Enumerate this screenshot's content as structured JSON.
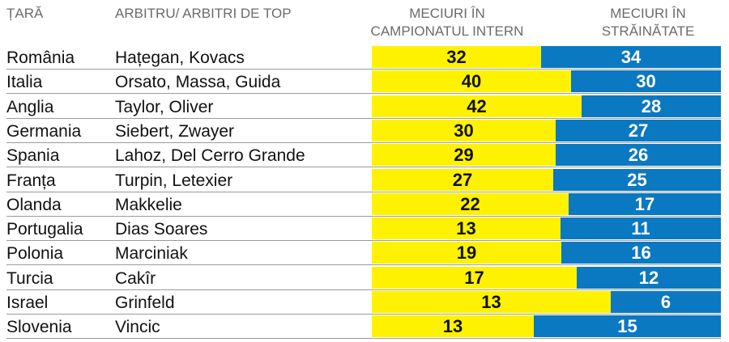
{
  "header": {
    "country": "ȚARĂ",
    "referees": "ARBITRU/ ARBITRI DE TOP",
    "domestic_line1": "MECIURI ÎN",
    "domestic_line2": "CAMPIONATUL INTERN",
    "abroad_line1": "MECIURI ÎN",
    "abroad_line2": "STRĂINĂTATE"
  },
  "colors": {
    "domestic": "#fff200",
    "abroad": "#0b78c2"
  },
  "chart_data": {
    "type": "bar",
    "stacked": true,
    "series": [
      {
        "name": "MECIURI ÎN CAMPIONATUL INTERN",
        "values": [
          32,
          40,
          42,
          30,
          29,
          27,
          22,
          13,
          19,
          17,
          13,
          13
        ]
      },
      {
        "name": "MECIURI ÎN STRĂINĂTATE",
        "values": [
          34,
          30,
          28,
          27,
          26,
          25,
          17,
          11,
          16,
          12,
          6,
          15
        ]
      }
    ],
    "rows": [
      {
        "country": "România",
        "referees": "Hațegan, Kovacs",
        "domestic": 32,
        "abroad": 34
      },
      {
        "country": "Italia",
        "referees": "Orsato, Massa, Guida",
        "domestic": 40,
        "abroad": 30
      },
      {
        "country": "Anglia",
        "referees": "Taylor, Oliver",
        "domestic": 42,
        "abroad": 28
      },
      {
        "country": "Germania",
        "referees": "Siebert, Zwayer",
        "domestic": 30,
        "abroad": 27
      },
      {
        "country": "Spania",
        "referees": "Lahoz, Del Cerro Grande",
        "domestic": 29,
        "abroad": 26
      },
      {
        "country": "Franța",
        "referees": "Turpin, Letexier",
        "domestic": 27,
        "abroad": 25
      },
      {
        "country": "Olanda",
        "referees": "Makkelie",
        "domestic": 22,
        "abroad": 17
      },
      {
        "country": "Portugalia",
        "referees": "Dias Soares",
        "domestic": 13,
        "abroad": 11
      },
      {
        "country": "Polonia",
        "referees": "Marciniak",
        "domestic": 19,
        "abroad": 16
      },
      {
        "country": "Turcia",
        "referees": "Cakîr",
        "domestic": 17,
        "abroad": 12
      },
      {
        "country": "Israel",
        "referees": "Grinfeld",
        "domestic": 13,
        "abroad": 6
      },
      {
        "country": "Slovenia",
        "referees": "Vincic",
        "domestic": 13,
        "abroad": 15
      }
    ]
  }
}
